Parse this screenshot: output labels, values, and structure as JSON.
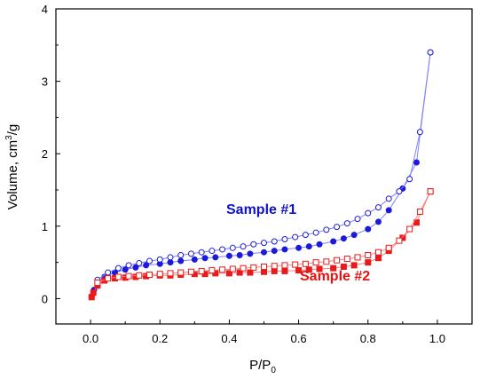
{
  "chart_data": {
    "type": "scatter",
    "xlabel": "P/P",
    "xlabel_sub": "0",
    "ylabel": "Volume, cm",
    "ylabel_sup": "3",
    "ylabel_suffix": "/g",
    "xlim": [
      -0.1,
      1.1
    ],
    "ylim": [
      -0.35,
      4
    ],
    "xticks": [
      0.0,
      0.2,
      0.4,
      0.6,
      0.8,
      1.0
    ],
    "xtick_labels": [
      "0.0",
      "0.2",
      "0.4",
      "0.6",
      "0.8",
      "1.0"
    ],
    "yticks": [
      0,
      1,
      2,
      3,
      4
    ],
    "ytick_labels": [
      "0",
      "1",
      "2",
      "3",
      "4"
    ],
    "grid": false,
    "annotations": [
      {
        "text": "Sample #1",
        "color": "#1010d0"
      },
      {
        "text": "Sample #2",
        "color": "#e81010"
      }
    ],
    "series": [
      {
        "color": "#1a1ad8",
        "line_color": "#7f7fff",
        "marker": "circle-filled",
        "x": [
          0.003,
          0.01,
          0.02,
          0.04,
          0.07,
          0.1,
          0.13,
          0.16,
          0.2,
          0.23,
          0.26,
          0.3,
          0.33,
          0.36,
          0.4,
          0.43,
          0.46,
          0.5,
          0.53,
          0.56,
          0.6,
          0.63,
          0.66,
          0.7,
          0.73,
          0.76,
          0.8,
          0.83,
          0.86,
          0.9,
          0.94,
          0.98
        ],
        "y": [
          0.03,
          0.12,
          0.22,
          0.3,
          0.36,
          0.4,
          0.43,
          0.46,
          0.48,
          0.5,
          0.52,
          0.54,
          0.56,
          0.57,
          0.59,
          0.6,
          0.62,
          0.64,
          0.66,
          0.68,
          0.7,
          0.72,
          0.75,
          0.79,
          0.83,
          0.88,
          0.96,
          1.06,
          1.22,
          1.52,
          1.88,
          3.4
        ]
      },
      {
        "color": "#1a1ad8",
        "line_color": "#7f7fff",
        "marker": "circle-open",
        "x": [
          0.98,
          0.95,
          0.92,
          0.89,
          0.86,
          0.83,
          0.8,
          0.77,
          0.74,
          0.71,
          0.68,
          0.65,
          0.62,
          0.59,
          0.56,
          0.53,
          0.5,
          0.47,
          0.44,
          0.41,
          0.38,
          0.35,
          0.32,
          0.29,
          0.26,
          0.23,
          0.2,
          0.17,
          0.14,
          0.11,
          0.08,
          0.05,
          0.02
        ],
        "y": [
          3.4,
          2.3,
          1.65,
          1.48,
          1.38,
          1.26,
          1.18,
          1.1,
          1.04,
          0.99,
          0.95,
          0.91,
          0.88,
          0.85,
          0.82,
          0.79,
          0.77,
          0.75,
          0.72,
          0.7,
          0.68,
          0.66,
          0.64,
          0.62,
          0.6,
          0.57,
          0.54,
          0.52,
          0.49,
          0.46,
          0.42,
          0.36,
          0.26
        ]
      },
      {
        "color": "#e81a1a",
        "line_color": "#ff8080",
        "marker": "square-filled",
        "x": [
          0.003,
          0.008,
          0.02,
          0.04,
          0.07,
          0.1,
          0.13,
          0.16,
          0.2,
          0.23,
          0.26,
          0.3,
          0.33,
          0.36,
          0.4,
          0.43,
          0.46,
          0.5,
          0.53,
          0.56,
          0.6,
          0.63,
          0.66,
          0.7,
          0.73,
          0.76,
          0.8,
          0.83,
          0.86,
          0.9,
          0.94,
          0.98
        ],
        "y": [
          0.02,
          0.08,
          0.18,
          0.25,
          0.28,
          0.29,
          0.3,
          0.31,
          0.32,
          0.32,
          0.33,
          0.34,
          0.34,
          0.35,
          0.35,
          0.36,
          0.36,
          0.37,
          0.38,
          0.38,
          0.39,
          0.4,
          0.41,
          0.42,
          0.44,
          0.46,
          0.5,
          0.56,
          0.66,
          0.84,
          1.05,
          1.48
        ]
      },
      {
        "color": "#e81a1a",
        "line_color": "#ff8080",
        "marker": "square-open",
        "x": [
          0.98,
          0.95,
          0.92,
          0.89,
          0.86,
          0.83,
          0.8,
          0.77,
          0.74,
          0.71,
          0.68,
          0.65,
          0.62,
          0.59,
          0.56,
          0.53,
          0.5,
          0.47,
          0.44,
          0.41,
          0.38,
          0.35,
          0.32,
          0.29,
          0.26,
          0.23,
          0.2,
          0.17,
          0.14,
          0.11,
          0.08,
          0.05,
          0.02
        ],
        "y": [
          1.48,
          1.2,
          0.96,
          0.8,
          0.7,
          0.64,
          0.6,
          0.57,
          0.55,
          0.53,
          0.51,
          0.5,
          0.48,
          0.47,
          0.46,
          0.45,
          0.44,
          0.43,
          0.42,
          0.41,
          0.4,
          0.39,
          0.38,
          0.37,
          0.36,
          0.35,
          0.34,
          0.33,
          0.32,
          0.31,
          0.3,
          0.28,
          0.22
        ]
      }
    ]
  }
}
